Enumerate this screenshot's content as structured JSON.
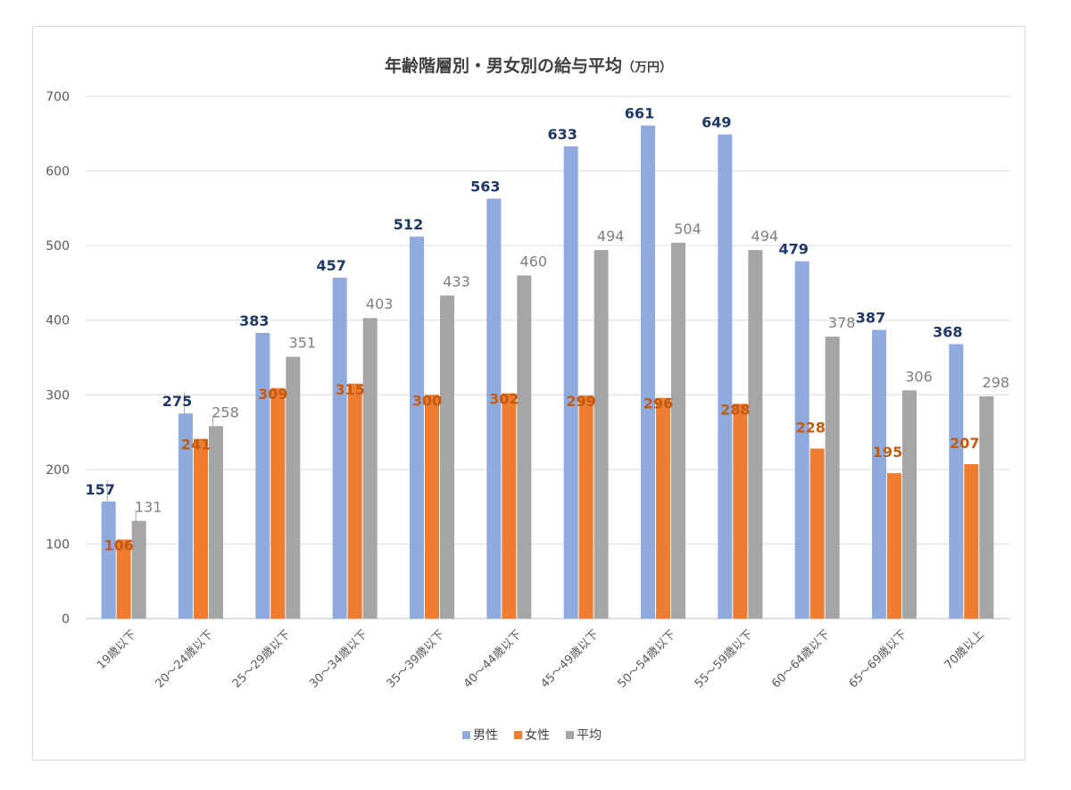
{
  "chart_data": {
    "type": "bar",
    "title": "年齢階層別・男女別の給与平均",
    "title_unit": "（万円）",
    "categories": [
      "19歳以下",
      "20～24歳以下",
      "25～29歳以下",
      "30～34歳以下",
      "35～39歳以下",
      "40～44歳以下",
      "45～49歳以下",
      "50～54歳以下",
      "55～59歳以下",
      "60～64歳以下",
      "65～69歳以下",
      "70歳以上"
    ],
    "series": [
      {
        "name": "男性",
        "color": "#8faadc",
        "label_color": "#1f3864",
        "label_bold": true,
        "values": [
          157,
          275,
          383,
          457,
          512,
          563,
          633,
          661,
          649,
          479,
          387,
          368
        ]
      },
      {
        "name": "女性",
        "color": "#ed7d31",
        "label_color": "#c55a11",
        "label_bold": true,
        "values": [
          106,
          241,
          309,
          315,
          300,
          302,
          299,
          296,
          288,
          228,
          195,
          207
        ]
      },
      {
        "name": "平均",
        "color": "#a5a5a5",
        "label_color": "#7f7f7f",
        "label_bold": false,
        "values": [
          131,
          258,
          351,
          403,
          433,
          460,
          494,
          504,
          494,
          378,
          306,
          298
        ]
      }
    ],
    "ylim": [
      0,
      700
    ],
    "yticks": [
      0,
      100,
      200,
      300,
      400,
      500,
      600,
      700
    ],
    "grid": true,
    "legend_position": "bottom"
  }
}
